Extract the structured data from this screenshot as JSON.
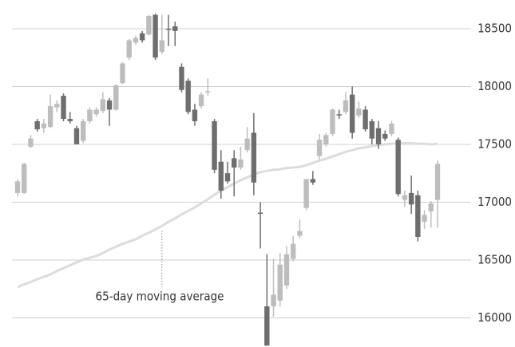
{
  "chart_data": {
    "type": "candlestick",
    "annotation": "65-day moving average",
    "up_color": "#bdbdbd",
    "down_color": "#6e6e6e",
    "ma_color": "#dcdcdc",
    "ylim": [
      15748,
      18748
    ],
    "yticks": [
      16000,
      16500,
      17000,
      17500,
      18000,
      18500
    ],
    "grid": true,
    "open": [
      17080,
      17080,
      17480,
      17700,
      17640,
      17650,
      17820,
      17920,
      17720,
      17640,
      17530,
      17700,
      17760,
      17790,
      17880,
      17800,
      18030,
      18250,
      18380,
      18460,
      18450,
      18620,
      18300,
      18500,
      18520,
      18170,
      18050,
      17800,
      17830,
      17950,
      17700,
      17350,
      17250,
      17380,
      17300,
      17450,
      17600,
      16910,
      16100,
      16100,
      16150,
      16280,
      16510,
      16710,
      16950,
      17200,
      17400,
      17500,
      17590,
      17760,
      17780,
      17930,
      17750,
      17800,
      17700,
      17640,
      17590,
      17590,
      17540,
      17020,
      17080,
      17060,
      16830,
      16920,
      17020
    ],
    "high": [
      17200,
      17340,
      17580,
      17720,
      17720,
      17930,
      17880,
      17940,
      17780,
      17660,
      17720,
      17820,
      17820,
      17950,
      17900,
      18020,
      18210,
      18410,
      18440,
      18480,
      18620,
      18630,
      18620,
      18620,
      18560,
      18200,
      18070,
      17850,
      17950,
      18070,
      17720,
      17450,
      17350,
      17450,
      17480,
      17650,
      17770,
      17000,
      16550,
      16510,
      16560,
      16620,
      16710,
      16850,
      17200,
      17270,
      17590,
      17600,
      17810,
      17800,
      17950,
      18000,
      17870,
      17830,
      17720,
      17700,
      17620,
      17700,
      17560,
      17100,
      17230,
      17100,
      16930,
      17010,
      17360
    ],
    "low": [
      17050,
      17070,
      17470,
      17610,
      17600,
      17640,
      17780,
      17700,
      17680,
      17500,
      17510,
      17680,
      17740,
      17770,
      17660,
      17790,
      18020,
      18230,
      18360,
      18380,
      18440,
      18230,
      18280,
      18350,
      18350,
      17950,
      17760,
      17660,
      17810,
      17920,
      17250,
      17030,
      17160,
      17050,
      17280,
      17430,
      17060,
      16600,
      15760,
      16010,
      16100,
      16250,
      16490,
      16690,
      16930,
      17150,
      17370,
      17480,
      17570,
      17720,
      17760,
      17550,
      17730,
      17610,
      17500,
      17460,
      17530,
      17570,
      17050,
      16960,
      16900,
      16660,
      16770,
      16780,
      16780
    ],
    "close": [
      17180,
      17330,
      17550,
      17630,
      17680,
      17830,
      17850,
      17720,
      17700,
      17500,
      17700,
      17800,
      17800,
      17890,
      17800,
      18010,
      18200,
      18400,
      18420,
      18400,
      18610,
      18250,
      18400,
      18490,
      18480,
      17970,
      17780,
      17700,
      17930,
      17960,
      17280,
      17100,
      17180,
      17300,
      17370,
      17550,
      17170,
      16900,
      15760,
      16200,
      16460,
      16550,
      16640,
      16750,
      17200,
      17170,
      17540,
      17580,
      17800,
      17750,
      17880,
      17600,
      17810,
      17630,
      17550,
      17500,
      17550,
      17680,
      17070,
      17060,
      16980,
      16700,
      16890,
      16990,
      17330
    ],
    "moving_average": [
      16265,
      16290,
      16310,
      16335,
      16355,
      16375,
      16405,
      16430,
      16455,
      16480,
      16505,
      16520,
      16535,
      16560,
      16590,
      16615,
      16640,
      16660,
      16680,
      16710,
      16735,
      16765,
      16795,
      16830,
      16860,
      16895,
      16925,
      16955,
      16990,
      17025,
      17065,
      17100,
      17130,
      17160,
      17190,
      17215,
      17240,
      17260,
      17270,
      17280,
      17285,
      17295,
      17300,
      17305,
      17320,
      17340,
      17360,
      17375,
      17395,
      17415,
      17435,
      17450,
      17465,
      17475,
      17485,
      17495,
      17500,
      17505,
      17510,
      17510,
      17510,
      17505,
      17505,
      17500,
      17505
    ]
  }
}
